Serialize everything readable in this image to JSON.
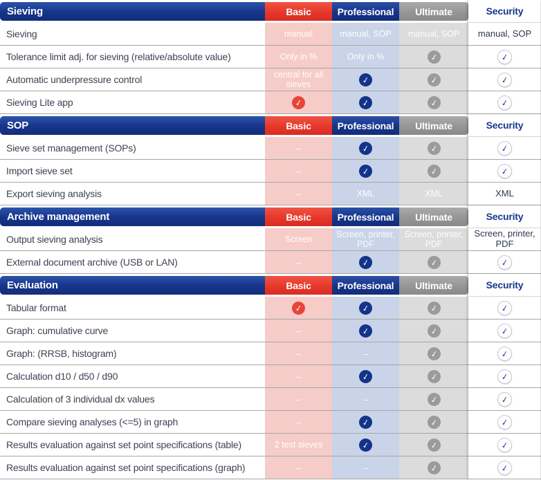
{
  "icons": {
    "check_icon": "✓",
    "dash": "–"
  },
  "colors": {
    "section_blue": "#17368c",
    "basic_red": "#e6372b",
    "ultimate_gray": "#949494",
    "security_text_blue": "#17368c",
    "basic_cell_bg": "#f6ccc8",
    "professional_cell_bg": "#c9d4e8",
    "ultimate_cell_bg": "#dcdcdc",
    "feature_text": "#3d4352"
  },
  "columns": [
    "Basic",
    "Professional",
    "Ultimate",
    "Security"
  ],
  "sections": [
    {
      "title": "Sieving",
      "rows": [
        {
          "feature": "Sieving",
          "cells": [
            {
              "type": "text",
              "value": "manual"
            },
            {
              "type": "text",
              "value": "manual, SOP"
            },
            {
              "type": "text",
              "value": "manual, SOP"
            },
            {
              "type": "text",
              "value": "manual, SOP"
            }
          ]
        },
        {
          "feature": "Tolerance limit adj. for sieving (relative/absolute value)",
          "cells": [
            {
              "type": "text",
              "value": "Only in %"
            },
            {
              "type": "text",
              "value": "Only in %"
            },
            {
              "type": "check"
            },
            {
              "type": "check"
            }
          ]
        },
        {
          "feature": "Automatic underpressure control",
          "cells": [
            {
              "type": "text",
              "value": "central for all sieves"
            },
            {
              "type": "check"
            },
            {
              "type": "check"
            },
            {
              "type": "check"
            }
          ]
        },
        {
          "feature": "Sieving Lite app",
          "cells": [
            {
              "type": "check"
            },
            {
              "type": "check"
            },
            {
              "type": "check"
            },
            {
              "type": "check"
            }
          ]
        }
      ]
    },
    {
      "title": "SOP",
      "rows": [
        {
          "feature": "Sieve set management (SOPs)",
          "cells": [
            {
              "type": "dash"
            },
            {
              "type": "check"
            },
            {
              "type": "check"
            },
            {
              "type": "check"
            }
          ]
        },
        {
          "feature": "Import sieve set",
          "cells": [
            {
              "type": "dash"
            },
            {
              "type": "check"
            },
            {
              "type": "check"
            },
            {
              "type": "check"
            }
          ]
        },
        {
          "feature": "Export sieving analysis",
          "cells": [
            {
              "type": "dash"
            },
            {
              "type": "text",
              "value": "XML"
            },
            {
              "type": "text",
              "value": "XML"
            },
            {
              "type": "text",
              "value": "XML"
            }
          ]
        }
      ]
    },
    {
      "title": "Archive management",
      "rows": [
        {
          "feature": "Output sieving analysis",
          "cells": [
            {
              "type": "text",
              "value": "Screen"
            },
            {
              "type": "text",
              "value": "Screen, printer, PDF"
            },
            {
              "type": "text",
              "value": "Screen, printer, PDF"
            },
            {
              "type": "text",
              "value": "Screen, printer, PDF"
            }
          ]
        },
        {
          "feature": "External document archive (USB or LAN)",
          "cells": [
            {
              "type": "dash"
            },
            {
              "type": "check"
            },
            {
              "type": "check"
            },
            {
              "type": "check"
            }
          ]
        }
      ]
    },
    {
      "title": "Evaluation",
      "rows": [
        {
          "feature": "Tabular format",
          "cells": [
            {
              "type": "check"
            },
            {
              "type": "check"
            },
            {
              "type": "check"
            },
            {
              "type": "check"
            }
          ]
        },
        {
          "feature": "Graph: cumulative curve",
          "cells": [
            {
              "type": "dash"
            },
            {
              "type": "check"
            },
            {
              "type": "check"
            },
            {
              "type": "check"
            }
          ]
        },
        {
          "feature": "Graph: (RRSB, histogram)",
          "cells": [
            {
              "type": "dash"
            },
            {
              "type": "dash"
            },
            {
              "type": "check"
            },
            {
              "type": "check"
            }
          ]
        },
        {
          "feature": "Calculation d10 / d50 / d90",
          "cells": [
            {
              "type": "dash"
            },
            {
              "type": "check"
            },
            {
              "type": "check"
            },
            {
              "type": "check"
            }
          ]
        },
        {
          "feature": "Calculation of 3 individual dx values",
          "cells": [
            {
              "type": "dash"
            },
            {
              "type": "dash"
            },
            {
              "type": "check"
            },
            {
              "type": "check"
            }
          ]
        },
        {
          "feature": "Compare sieving analyses (<=5) in graph",
          "cells": [
            {
              "type": "dash"
            },
            {
              "type": "check"
            },
            {
              "type": "check"
            },
            {
              "type": "check"
            }
          ]
        },
        {
          "feature": "Results evaluation against set point specifications (table)",
          "cells": [
            {
              "type": "text",
              "value": "2 test sieves"
            },
            {
              "type": "check"
            },
            {
              "type": "check"
            },
            {
              "type": "check"
            }
          ]
        },
        {
          "feature": "Results evaluation against set point specifications (graph)",
          "cells": [
            {
              "type": "dash"
            },
            {
              "type": "dash"
            },
            {
              "type": "check"
            },
            {
              "type": "check"
            }
          ]
        }
      ]
    }
  ]
}
